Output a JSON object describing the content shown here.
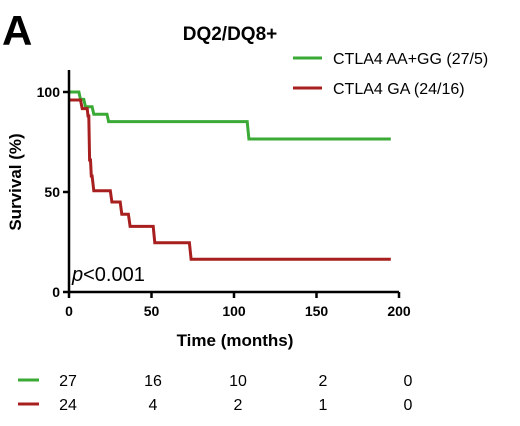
{
  "panel_label": "A",
  "chart_data": {
    "type": "line",
    "subtype": "kaplan-meier",
    "title": "DQ2/DQ8+",
    "xlabel": "Time (months)",
    "ylabel": "Survival (%)",
    "xlim": [
      0,
      200
    ],
    "ylim": [
      0,
      100
    ],
    "xticks": [
      0,
      50,
      100,
      150,
      200
    ],
    "yticks": [
      0,
      50,
      100
    ],
    "grid": false,
    "legend_position": "top-right",
    "annotation": {
      "italic": "p",
      "text": "<0.001"
    },
    "series": [
      {
        "name": "CTLA4 AA+GG (27/5)",
        "color": "#3aa935",
        "steps": [
          [
            0,
            100
          ],
          [
            6,
            100
          ],
          [
            7,
            96.3
          ],
          [
            9,
            96.3
          ],
          [
            10,
            92.6
          ],
          [
            14,
            92.6
          ],
          [
            15,
            88.9
          ],
          [
            23,
            88.9
          ],
          [
            24,
            85.2
          ],
          [
            108,
            85.2
          ],
          [
            109,
            76.5
          ],
          [
            195,
            76.5
          ]
        ],
        "at_risk": [
          27,
          16,
          10,
          2,
          0
        ]
      },
      {
        "name": "CTLA4 GA (24/16)",
        "color": "#a81f1f",
        "steps": [
          [
            0,
            96
          ],
          [
            7,
            96
          ],
          [
            8,
            91.7
          ],
          [
            11,
            91.7
          ],
          [
            11.5,
            88
          ],
          [
            12,
            88
          ],
          [
            12.5,
            66
          ],
          [
            13,
            66
          ],
          [
            13.5,
            58
          ],
          [
            14,
            58
          ],
          [
            15,
            50.6
          ],
          [
            25,
            50.6
          ],
          [
            26,
            45
          ],
          [
            31,
            45
          ],
          [
            32,
            38.9
          ],
          [
            36,
            38.9
          ],
          [
            37,
            32.8
          ],
          [
            51,
            32.8
          ],
          [
            52,
            24.6
          ],
          [
            73,
            24.6
          ],
          [
            74,
            16.4
          ],
          [
            195,
            16.4
          ]
        ],
        "at_risk": [
          24,
          4,
          2,
          1,
          0
        ]
      }
    ]
  }
}
